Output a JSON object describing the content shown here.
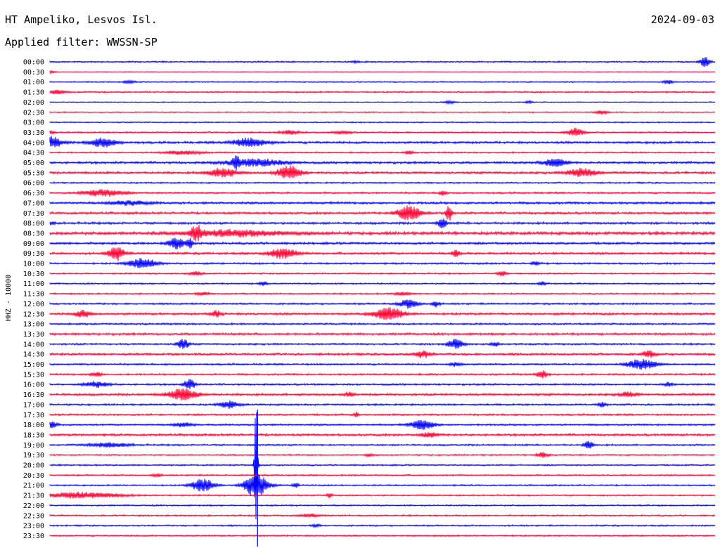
{
  "header": {
    "station": "HT Ampeliko, Lesvos Isl.",
    "date": "2024-09-03",
    "filter": "Applied filter: WWSSN-SP"
  },
  "chart_data": {
    "type": "helicorder",
    "ylabel": "HHZ - 10000",
    "row_colors": [
      "#0000ff",
      "#ff0033"
    ],
    "rows": [
      "00:00",
      "00:30",
      "01:00",
      "01:30",
      "02:00",
      "02:30",
      "03:00",
      "03:30",
      "04:00",
      "04:30",
      "05:00",
      "05:30",
      "06:00",
      "06:30",
      "07:00",
      "07:30",
      "08:00",
      "08:30",
      "09:00",
      "09:30",
      "10:00",
      "10:30",
      "11:00",
      "11:30",
      "12:00",
      "12:30",
      "13:00",
      "13:30",
      "14:00",
      "14:30",
      "15:00",
      "15:30",
      "16:00",
      "16:30",
      "17:00",
      "17:30",
      "18:00",
      "18:30",
      "19:00",
      "19:30",
      "20:00",
      "20:30",
      "21:00",
      "21:30",
      "22:00",
      "22:30",
      "23:00",
      "23:30"
    ],
    "baseline_noise": [
      1,
      0.5,
      0.8,
      1,
      0.6,
      0.8,
      0.8,
      1,
      1.5,
      1,
      1.5,
      1.5,
      1,
      1.2,
      1.5,
      1.5,
      1.5,
      2,
      1.5,
      1.5,
      1.2,
      1,
      1,
      1,
      1.2,
      1.5,
      1.2,
      1.5,
      1.2,
      1.5,
      1.2,
      1.2,
      1.2,
      1.5,
      1.2,
      1.2,
      1.2,
      1.5,
      1.2,
      1,
      1,
      1,
      1,
      1,
      1,
      1,
      1,
      1
    ],
    "events": [
      {
        "row": 0,
        "x": 0.985,
        "amp": 7,
        "w": 0.005
      },
      {
        "row": 0,
        "x": 0.46,
        "amp": 1.5,
        "w": 0.004
      },
      {
        "row": 1,
        "x": 0.0,
        "amp": 2,
        "w": 0.005
      },
      {
        "row": 2,
        "x": 0.12,
        "amp": 2,
        "w": 0.006
      },
      {
        "row": 2,
        "x": 0.93,
        "amp": 3,
        "w": 0.005
      },
      {
        "row": 3,
        "x": 0.01,
        "amp": 3,
        "w": 0.008
      },
      {
        "row": 4,
        "x": 0.6,
        "amp": 2,
        "w": 0.006
      },
      {
        "row": 4,
        "x": 0.72,
        "amp": 1.5,
        "w": 0.004
      },
      {
        "row": 5,
        "x": 0.83,
        "amp": 3,
        "w": 0.006
      },
      {
        "row": 7,
        "x": 0.0,
        "amp": 3,
        "w": 0.004
      },
      {
        "row": 7,
        "x": 0.36,
        "amp": 2.5,
        "w": 0.01
      },
      {
        "row": 7,
        "x": 0.44,
        "amp": 2,
        "w": 0.01
      },
      {
        "row": 7,
        "x": 0.79,
        "amp": 6,
        "w": 0.008
      },
      {
        "row": 8,
        "x": 0.0,
        "amp": 8,
        "w": 0.012
      },
      {
        "row": 8,
        "x": 0.08,
        "amp": 6,
        "w": 0.014
      },
      {
        "row": 8,
        "x": 0.3,
        "amp": 6,
        "w": 0.018
      },
      {
        "row": 9,
        "x": 0.2,
        "amp": 2.5,
        "w": 0.02
      },
      {
        "row": 9,
        "x": 0.54,
        "amp": 2.5,
        "w": 0.004
      },
      {
        "row": 10,
        "x": 0.28,
        "amp": 8,
        "w": 0.004
      },
      {
        "row": 10,
        "x": 0.31,
        "amp": 5,
        "w": 0.03
      },
      {
        "row": 10,
        "x": 0.76,
        "amp": 6,
        "w": 0.012
      },
      {
        "row": 11,
        "x": 0.26,
        "amp": 6,
        "w": 0.015
      },
      {
        "row": 11,
        "x": 0.36,
        "amp": 10,
        "w": 0.012
      },
      {
        "row": 11,
        "x": 0.8,
        "amp": 6,
        "w": 0.015
      },
      {
        "row": 13,
        "x": 0.08,
        "amp": 5,
        "w": 0.02
      },
      {
        "row": 13,
        "x": 0.59,
        "amp": 4,
        "w": 0.003
      },
      {
        "row": 14,
        "x": 0.12,
        "amp": 3,
        "w": 0.02
      },
      {
        "row": 15,
        "x": 0.54,
        "amp": 11,
        "w": 0.012
      },
      {
        "row": 15,
        "x": 0.6,
        "amp": 12,
        "w": 0.003
      },
      {
        "row": 16,
        "x": 0.0,
        "amp": 2,
        "w": 0.005
      },
      {
        "row": 16,
        "x": 0.59,
        "amp": 8,
        "w": 0.004
      },
      {
        "row": 17,
        "x": 0.22,
        "amp": 10,
        "w": 0.006
      },
      {
        "row": 17,
        "x": 0.28,
        "amp": 4,
        "w": 0.05
      },
      {
        "row": 18,
        "x": 0.19,
        "amp": 8,
        "w": 0.008
      },
      {
        "row": 18,
        "x": 0.21,
        "amp": 8,
        "w": 0.003
      },
      {
        "row": 19,
        "x": 0.1,
        "amp": 10,
        "w": 0.008
      },
      {
        "row": 19,
        "x": 0.35,
        "amp": 7,
        "w": 0.015
      },
      {
        "row": 19,
        "x": 0.61,
        "amp": 5,
        "w": 0.004
      },
      {
        "row": 20,
        "x": 0.14,
        "amp": 7,
        "w": 0.015
      },
      {
        "row": 20,
        "x": 0.73,
        "amp": 3,
        "w": 0.004
      },
      {
        "row": 21,
        "x": 0.22,
        "amp": 3,
        "w": 0.006
      },
      {
        "row": 21,
        "x": 0.68,
        "amp": 3,
        "w": 0.005
      },
      {
        "row": 22,
        "x": 0.32,
        "amp": 3,
        "w": 0.004
      },
      {
        "row": 22,
        "x": 0.74,
        "amp": 3,
        "w": 0.004
      },
      {
        "row": 23,
        "x": 0.23,
        "amp": 2.5,
        "w": 0.006
      },
      {
        "row": 23,
        "x": 0.53,
        "amp": 2.5,
        "w": 0.008
      },
      {
        "row": 24,
        "x": 0.54,
        "amp": 6,
        "w": 0.01
      },
      {
        "row": 24,
        "x": 0.58,
        "amp": 4,
        "w": 0.004
      },
      {
        "row": 25,
        "x": 0.05,
        "amp": 5,
        "w": 0.008
      },
      {
        "row": 25,
        "x": 0.25,
        "amp": 4,
        "w": 0.006
      },
      {
        "row": 25,
        "x": 0.51,
        "amp": 9,
        "w": 0.015
      },
      {
        "row": 28,
        "x": 0.2,
        "amp": 7,
        "w": 0.006
      },
      {
        "row": 28,
        "x": 0.61,
        "amp": 7,
        "w": 0.008
      },
      {
        "row": 28,
        "x": 0.67,
        "amp": 3,
        "w": 0.004
      },
      {
        "row": 29,
        "x": 0.56,
        "amp": 5,
        "w": 0.008
      },
      {
        "row": 29,
        "x": 0.9,
        "amp": 5,
        "w": 0.006
      },
      {
        "row": 30,
        "x": 0.89,
        "amp": 7,
        "w": 0.015
      },
      {
        "row": 30,
        "x": 0.61,
        "amp": 3,
        "w": 0.006
      },
      {
        "row": 31,
        "x": 0.07,
        "amp": 3,
        "w": 0.006
      },
      {
        "row": 31,
        "x": 0.74,
        "amp": 5,
        "w": 0.006
      },
      {
        "row": 32,
        "x": 0.07,
        "amp": 4,
        "w": 0.012
      },
      {
        "row": 32,
        "x": 0.21,
        "amp": 7,
        "w": 0.006
      },
      {
        "row": 32,
        "x": 0.93,
        "amp": 3,
        "w": 0.005
      },
      {
        "row": 33,
        "x": 0.2,
        "amp": 8,
        "w": 0.015
      },
      {
        "row": 33,
        "x": 0.45,
        "amp": 3,
        "w": 0.005
      },
      {
        "row": 33,
        "x": 0.87,
        "amp": 3,
        "w": 0.01
      },
      {
        "row": 34,
        "x": 0.27,
        "amp": 5,
        "w": 0.01
      },
      {
        "row": 34,
        "x": 0.83,
        "amp": 4,
        "w": 0.004
      },
      {
        "row": 35,
        "x": 0.46,
        "amp": 3,
        "w": 0.003
      },
      {
        "row": 36,
        "x": 0.0,
        "amp": 6,
        "w": 0.006
      },
      {
        "row": 36,
        "x": 0.2,
        "amp": 3,
        "w": 0.01
      },
      {
        "row": 36,
        "x": 0.56,
        "amp": 7,
        "w": 0.012
      },
      {
        "row": 37,
        "x": 0.57,
        "amp": 3,
        "w": 0.01
      },
      {
        "row": 38,
        "x": 0.09,
        "amp": 3,
        "w": 0.02
      },
      {
        "row": 38,
        "x": 0.81,
        "amp": 5,
        "w": 0.005
      },
      {
        "row": 39,
        "x": 0.48,
        "amp": 2,
        "w": 0.004
      },
      {
        "row": 39,
        "x": 0.74,
        "amp": 4,
        "w": 0.006
      },
      {
        "row": 40,
        "x": 0.31,
        "amp": 120,
        "w": 0.0015
      },
      {
        "row": 41,
        "x": 0.16,
        "amp": 2,
        "w": 0.005
      },
      {
        "row": 42,
        "x": 0.23,
        "amp": 9,
        "w": 0.012
      },
      {
        "row": 42,
        "x": 0.31,
        "amp": 18,
        "w": 0.012
      },
      {
        "row": 42,
        "x": 0.37,
        "amp": 4,
        "w": 0.003
      },
      {
        "row": 43,
        "x": 0.05,
        "amp": 4,
        "w": 0.04
      },
      {
        "row": 43,
        "x": 0.42,
        "amp": 3,
        "w": 0.003
      },
      {
        "row": 45,
        "x": 0.39,
        "amp": 2,
        "w": 0.01
      },
      {
        "row": 46,
        "x": 0.4,
        "amp": 2,
        "w": 0.004
      }
    ]
  }
}
